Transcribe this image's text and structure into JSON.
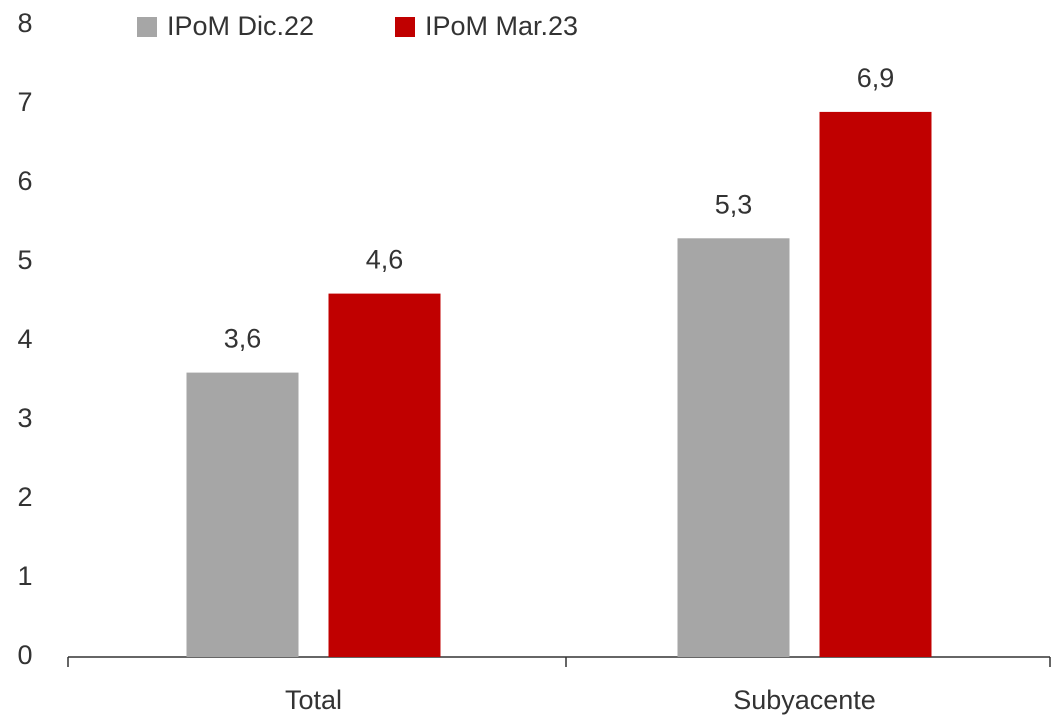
{
  "chart_data": {
    "type": "bar",
    "categories": [
      "Total",
      "Subyacente"
    ],
    "series": [
      {
        "name": "IPoM Dic.22",
        "color": "#a6a6a6",
        "values": [
          3.6,
          5.3
        ],
        "value_labels": [
          "3,6",
          "5,3"
        ]
      },
      {
        "name": "IPoM Mar.23",
        "color": "#c00000",
        "values": [
          4.6,
          6.9
        ],
        "value_labels": [
          "4,6",
          "6,9"
        ]
      }
    ],
    "ylim": [
      0,
      8
    ],
    "yticks": [
      0,
      1,
      2,
      3,
      4,
      5,
      6,
      7,
      8
    ],
    "grid": false,
    "legend": "top"
  }
}
